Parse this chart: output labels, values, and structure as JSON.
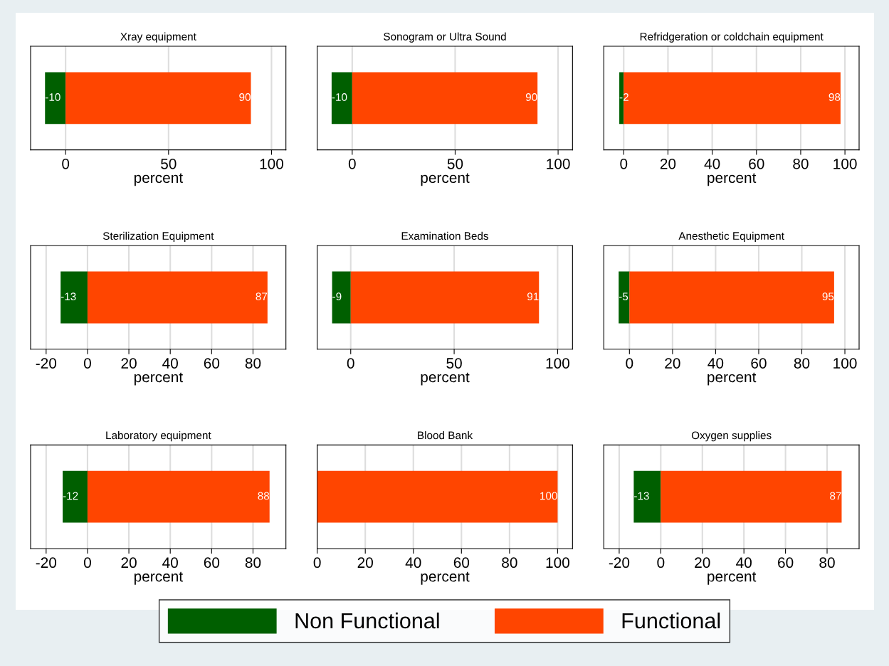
{
  "chart_data": [
    {
      "type": "bar",
      "orientation": "horizontal",
      "stacked": true,
      "title": "Xray equipment",
      "xlabel": "percent",
      "categories": [
        null
      ],
      "xlim": [
        -17,
        107
      ],
      "xticks": [
        0,
        50,
        100
      ],
      "grid": "x",
      "legend": "bottom",
      "series": [
        {
          "name": "Non Functional",
          "color": "#005f00",
          "values": [
            -10
          ],
          "value_labels": [
            "-10"
          ]
        },
        {
          "name": "Functional",
          "color": "#ff4500",
          "values": [
            90
          ],
          "value_labels": [
            "90"
          ]
        }
      ]
    },
    {
      "type": "bar",
      "orientation": "horizontal",
      "stacked": true,
      "title": "Sonogram or Ultra Sound",
      "xlabel": "percent",
      "categories": [
        null
      ],
      "xlim": [
        -17,
        107
      ],
      "xticks": [
        0,
        50,
        100
      ],
      "grid": "x",
      "series": [
        {
          "color": "#005f00",
          "values": [
            -10
          ],
          "value_labels": [
            "-10"
          ]
        },
        {
          "color": "#ff4500",
          "values": [
            90
          ],
          "value_labels": [
            "90"
          ]
        }
      ]
    },
    {
      "type": "bar",
      "orientation": "horizontal",
      "stacked": true,
      "title": "Refridgeration or coldchain equipment",
      "xlabel": "percent",
      "categories": [
        null
      ],
      "xlim": [
        -9,
        106.4
      ],
      "xticks": [
        0,
        20,
        40,
        60,
        80,
        100
      ],
      "grid": "x",
      "series": [
        {
          "color": "#005f00",
          "values": [
            -2
          ],
          "value_labels": [
            "-2"
          ]
        },
        {
          "color": "#ff4500",
          "values": [
            98
          ],
          "value_labels": [
            "98"
          ]
        }
      ]
    },
    {
      "type": "bar",
      "orientation": "horizontal",
      "stacked": true,
      "title": "Sterilization Equipment",
      "xlabel": "percent",
      "categories": [
        null
      ],
      "xlim": [
        -27.5,
        95.9
      ],
      "xticks": [
        -20,
        0,
        20,
        40,
        60,
        80
      ],
      "grid": "x",
      "series": [
        {
          "color": "#005f00",
          "values": [
            -13
          ],
          "value_labels": [
            "-13"
          ]
        },
        {
          "color": "#ff4500",
          "values": [
            87
          ],
          "value_labels": [
            "87"
          ]
        }
      ]
    },
    {
      "type": "bar",
      "orientation": "horizontal",
      "stacked": true,
      "title": "Examination Beds",
      "xlabel": "percent",
      "categories": [
        null
      ],
      "xlim": [
        -16.2,
        107.2
      ],
      "xticks": [
        0,
        50,
        100
      ],
      "grid": "x",
      "series": [
        {
          "color": "#005f00",
          "values": [
            -9
          ],
          "value_labels": [
            "-9"
          ]
        },
        {
          "color": "#ff4500",
          "values": [
            91
          ],
          "value_labels": [
            "91"
          ]
        }
      ]
    },
    {
      "type": "bar",
      "orientation": "horizontal",
      "stacked": true,
      "title": "Anesthetic Equipment",
      "xlabel": "percent",
      "categories": [
        null
      ],
      "xlim": [
        -11.9,
        106.6
      ],
      "xticks": [
        0,
        20,
        40,
        60,
        80,
        100
      ],
      "grid": "x",
      "series": [
        {
          "color": "#005f00",
          "values": [
            -5
          ],
          "value_labels": [
            "-5"
          ]
        },
        {
          "color": "#ff4500",
          "values": [
            95
          ],
          "value_labels": [
            "95"
          ]
        }
      ]
    },
    {
      "type": "bar",
      "orientation": "horizontal",
      "stacked": true,
      "title": "Laboratory equipment",
      "xlabel": "percent",
      "categories": [
        null
      ],
      "xlim": [
        -27.5,
        95.9
      ],
      "xticks": [
        -20,
        0,
        20,
        40,
        60,
        80
      ],
      "grid": "x",
      "series": [
        {
          "color": "#005f00",
          "values": [
            -12
          ],
          "value_labels": [
            "-12"
          ]
        },
        {
          "color": "#ff4500",
          "values": [
            88
          ],
          "value_labels": [
            "88"
          ]
        }
      ]
    },
    {
      "type": "bar",
      "orientation": "horizontal",
      "stacked": true,
      "title": "Blood Bank",
      "xlabel": "percent",
      "categories": [
        null
      ],
      "xlim": [
        0,
        106.2
      ],
      "xticks": [
        0,
        20,
        40,
        60,
        80,
        100
      ],
      "grid": "x",
      "series": [
        {
          "color": "#005f00",
          "values": [
            0
          ],
          "value_labels": [
            null
          ]
        },
        {
          "color": "#ff4500",
          "values": [
            100
          ],
          "value_labels": [
            "100"
          ]
        }
      ]
    },
    {
      "type": "bar",
      "orientation": "horizontal",
      "stacked": true,
      "title": "Oxygen supplies",
      "xlabel": "percent",
      "categories": [
        null
      ],
      "xlim": [
        -27.4,
        95.4
      ],
      "xticks": [
        -20,
        0,
        20,
        40,
        60,
        80
      ],
      "grid": "x",
      "series": [
        {
          "color": "#005f00",
          "values": [
            -13
          ],
          "value_labels": [
            "-13"
          ]
        },
        {
          "color": "#ff4500",
          "values": [
            87
          ],
          "value_labels": [
            "87"
          ]
        }
      ]
    }
  ]
}
